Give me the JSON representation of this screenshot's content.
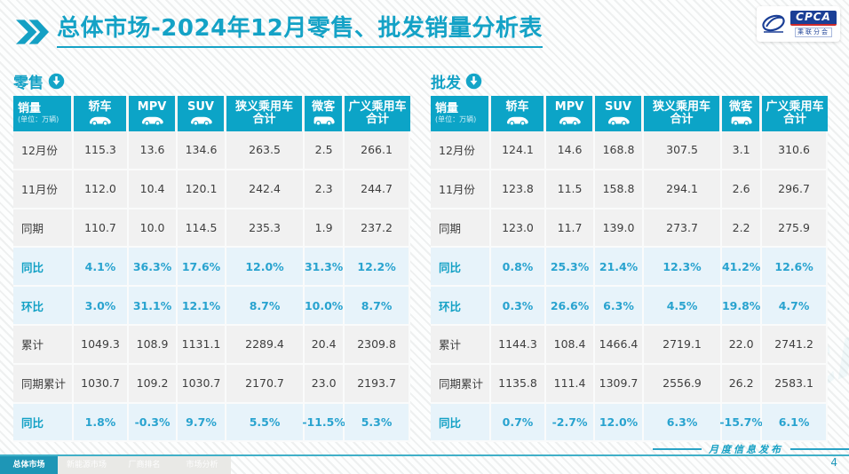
{
  "title": {
    "prefix": "总体市场",
    "suffix": "-2024年12月零售、批发销量分析表"
  },
  "logo": {
    "brand": "CPCA",
    "sub": "乘联分会"
  },
  "columns": [
    {
      "key": "sales-volume",
      "label": "销量",
      "unit": "(单位：万辆)"
    },
    {
      "key": "sedan",
      "label": "轿车",
      "icon": "car"
    },
    {
      "key": "mpv",
      "label": "MPV",
      "icon": "car"
    },
    {
      "key": "suv",
      "label": "SUV",
      "icon": "car"
    },
    {
      "key": "narrow-pv-total",
      "label": "狭义乘用车",
      "label2": "合计"
    },
    {
      "key": "minivan",
      "label": "微客",
      "icon": "van"
    },
    {
      "key": "broad-pv-total",
      "label": "广义乘用车",
      "label2": "合计"
    }
  ],
  "tables": [
    {
      "name": "零售",
      "rows": [
        {
          "label": "12月份",
          "kind": "num",
          "values": [
            "115.3",
            "13.6",
            "134.6",
            "263.5",
            "2.5",
            "266.1"
          ]
        },
        {
          "label": "11月份",
          "kind": "num",
          "values": [
            "112.0",
            "10.4",
            "120.1",
            "242.4",
            "2.3",
            "244.7"
          ]
        },
        {
          "label": "同期",
          "kind": "num",
          "values": [
            "110.7",
            "10.0",
            "114.5",
            "235.3",
            "1.9",
            "237.2"
          ]
        },
        {
          "label": "同比",
          "kind": "pct",
          "values": [
            "4.1%",
            "36.3%",
            "17.6%",
            "12.0%",
            "31.3%",
            "12.2%"
          ]
        },
        {
          "label": "环比",
          "kind": "pct",
          "values": [
            "3.0%",
            "31.1%",
            "12.1%",
            "8.7%",
            "10.0%",
            "8.7%"
          ]
        },
        {
          "label": "累计",
          "kind": "num",
          "values": [
            "1049.3",
            "108.9",
            "1131.1",
            "2289.4",
            "20.4",
            "2309.8"
          ]
        },
        {
          "label": "同期累计",
          "kind": "num",
          "values": [
            "1030.7",
            "109.2",
            "1030.7",
            "2170.7",
            "23.0",
            "2193.7"
          ]
        },
        {
          "label": "同比",
          "kind": "pct",
          "values": [
            "1.8%",
            "-0.3%",
            "9.7%",
            "5.5%",
            "-11.5%",
            "5.3%"
          ]
        }
      ]
    },
    {
      "name": "批发",
      "rows": [
        {
          "label": "12月份",
          "kind": "num",
          "values": [
            "124.1",
            "14.6",
            "168.8",
            "307.5",
            "3.1",
            "310.6"
          ]
        },
        {
          "label": "11月份",
          "kind": "num",
          "values": [
            "123.8",
            "11.5",
            "158.8",
            "294.1",
            "2.6",
            "296.7"
          ]
        },
        {
          "label": "同期",
          "kind": "num",
          "values": [
            "123.0",
            "11.7",
            "139.0",
            "273.7",
            "2.2",
            "275.9"
          ]
        },
        {
          "label": "同比",
          "kind": "pct",
          "values": [
            "0.8%",
            "25.3%",
            "21.4%",
            "12.3%",
            "41.2%",
            "12.6%"
          ]
        },
        {
          "label": "环比",
          "kind": "pct",
          "values": [
            "0.3%",
            "26.6%",
            "6.3%",
            "4.5%",
            "19.8%",
            "4.7%"
          ]
        },
        {
          "label": "累计",
          "kind": "num",
          "values": [
            "1144.3",
            "108.4",
            "1466.4",
            "2719.1",
            "22.0",
            "2741.2"
          ]
        },
        {
          "label": "同期累计",
          "kind": "num",
          "values": [
            "1135.8",
            "111.4",
            "1309.7",
            "2556.9",
            "26.2",
            "2583.1"
          ]
        },
        {
          "label": "同比",
          "kind": "pct",
          "values": [
            "0.7%",
            "-2.7%",
            "12.0%",
            "6.3%",
            "-15.7%",
            "6.1%"
          ]
        }
      ]
    }
  ],
  "footer": {
    "tabs": [
      {
        "label": "总体市场",
        "active": true
      },
      {
        "label": "新能源市场",
        "active": false
      },
      {
        "label": "厂商排名",
        "active": false
      },
      {
        "label": "市场分析",
        "active": false
      }
    ],
    "publish": "月度信息发布",
    "page": "4"
  },
  "colors": {
    "accent": "#14a2c6",
    "header": "#0ca4c7",
    "pct_bg": "#e7f3fa",
    "row_bg": "#f1f1f1",
    "logo_blue": "#1b3f96"
  }
}
